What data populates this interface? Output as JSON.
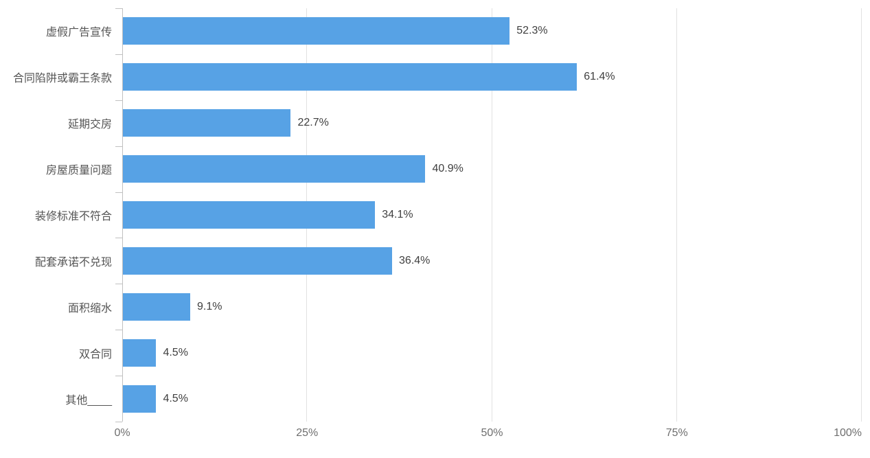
{
  "chart_data": {
    "type": "bar",
    "orientation": "horizontal",
    "title": "",
    "xlabel": "",
    "ylabel": "",
    "xlim": [
      0,
      100
    ],
    "grid": true,
    "legend": null,
    "categories": [
      "虚假广告宣传",
      "合同陷阱或霸王条款",
      "延期交房",
      "房屋质量问题",
      "装修标准不符合",
      "配套承诺不兑现",
      "面积缩水",
      "双合同",
      "其他____"
    ],
    "values": [
      52.3,
      61.4,
      22.7,
      40.9,
      34.1,
      36.4,
      9.1,
      4.5,
      4.5
    ],
    "value_labels": [
      "52.3%",
      "61.4%",
      "22.7%",
      "40.9%",
      "34.1%",
      "36.4%",
      "9.1%",
      "4.5%",
      "4.5%"
    ],
    "x_ticks": [
      "0%",
      "25%",
      "50%",
      "75%",
      "100%"
    ],
    "x_tick_values": [
      0,
      25,
      50,
      75,
      100
    ],
    "colors": {
      "bar": "#57a2e5",
      "grid": "#e1e1e1",
      "axis": "#c0c0c0",
      "category_label": "#555555",
      "value_label": "#3f3f3f",
      "x_tick_label": "#6e6e6e"
    }
  }
}
